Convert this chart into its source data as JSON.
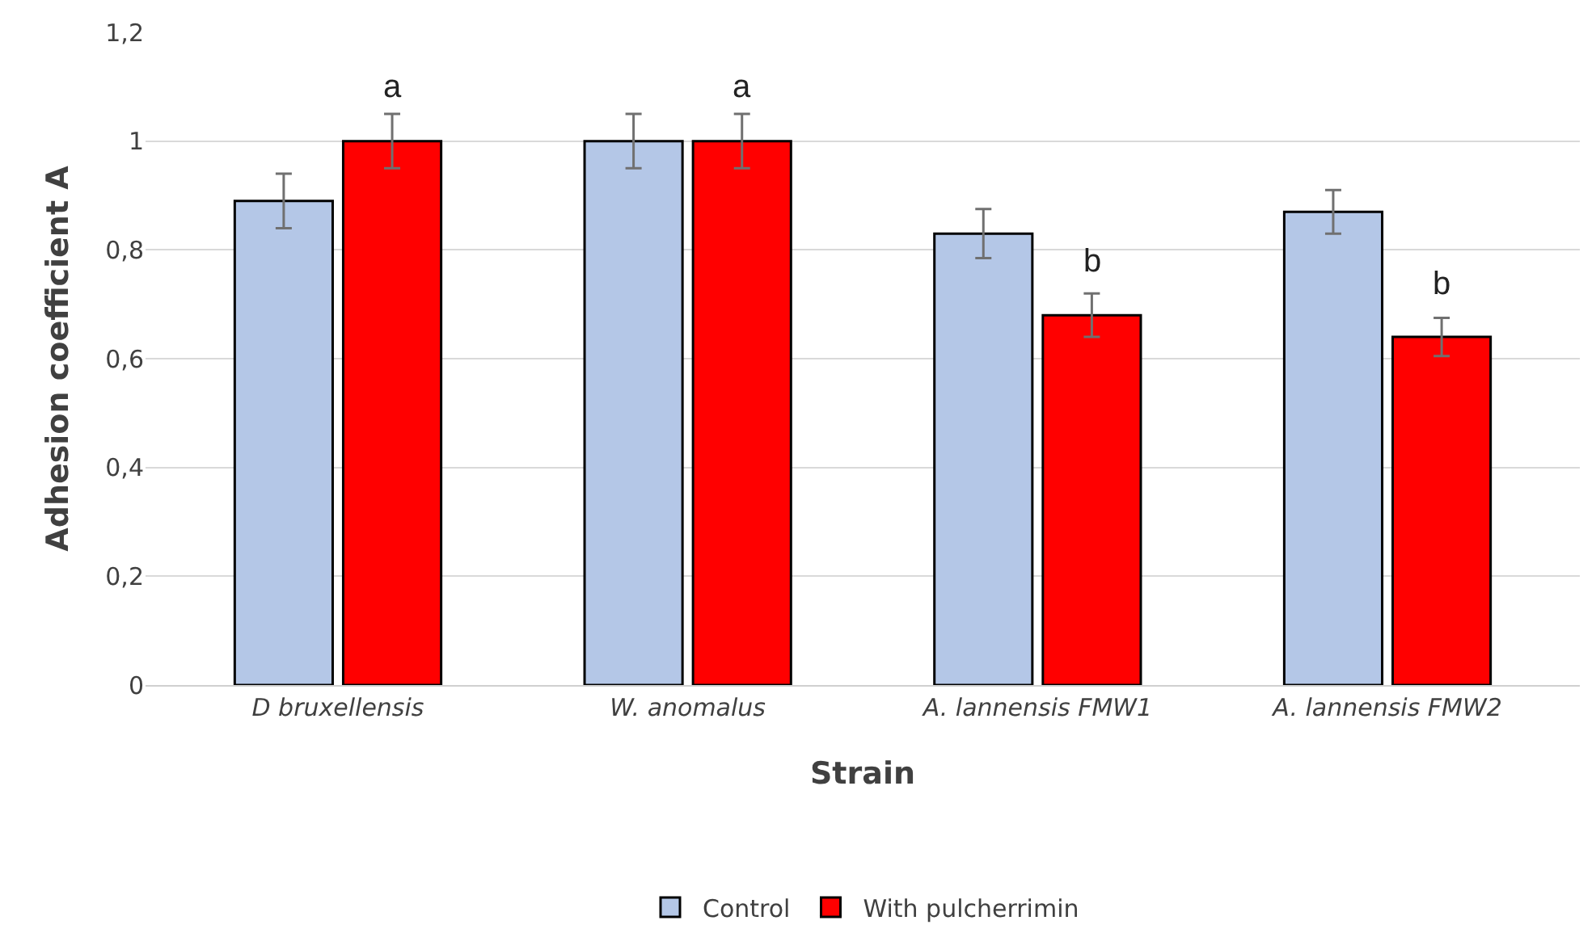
{
  "chart_data": {
    "type": "bar",
    "xlabel": "Strain",
    "ylabel": "Adhesion coefficient A",
    "categories": [
      "D bruxellensis",
      "W. anomalus",
      "A. lannensis FMW1",
      "A. lannensis FMW2"
    ],
    "series": [
      {
        "name": "Control",
        "color": "#b4c7e7",
        "values": [
          0.89,
          1.0,
          0.83,
          0.87
        ],
        "errors": [
          0.05,
          0.05,
          0.045,
          0.04
        ]
      },
      {
        "name": "With pulcherrimin",
        "color": "#ff0000",
        "values": [
          1.0,
          1.0,
          0.68,
          0.64
        ],
        "errors": [
          0.05,
          0.05,
          0.04,
          0.035
        ]
      }
    ],
    "ylim": [
      0,
      1.2
    ],
    "yticks": [
      0,
      {
        "value": 0.2,
        "label": "0,2"
      },
      {
        "value": 0.4,
        "label": "0,4"
      },
      {
        "value": 0.6,
        "label": "0,6"
      },
      {
        "value": 0.8,
        "label": "0,8"
      },
      1,
      {
        "value": 1.2,
        "label": "1,2"
      }
    ],
    "annotations": [
      {
        "text": "a",
        "x": "D bruxellensis",
        "y": 1.0
      },
      {
        "text": "a",
        "x": "W. anomalus",
        "y": 1.0
      },
      {
        "text": "b",
        "x": "A. lannensis FMW1",
        "y": 0.68
      },
      {
        "text": "b",
        "x": "A. lannensis FMW2",
        "y": 0.64
      }
    ],
    "grid": "y",
    "legend": "bottom"
  }
}
